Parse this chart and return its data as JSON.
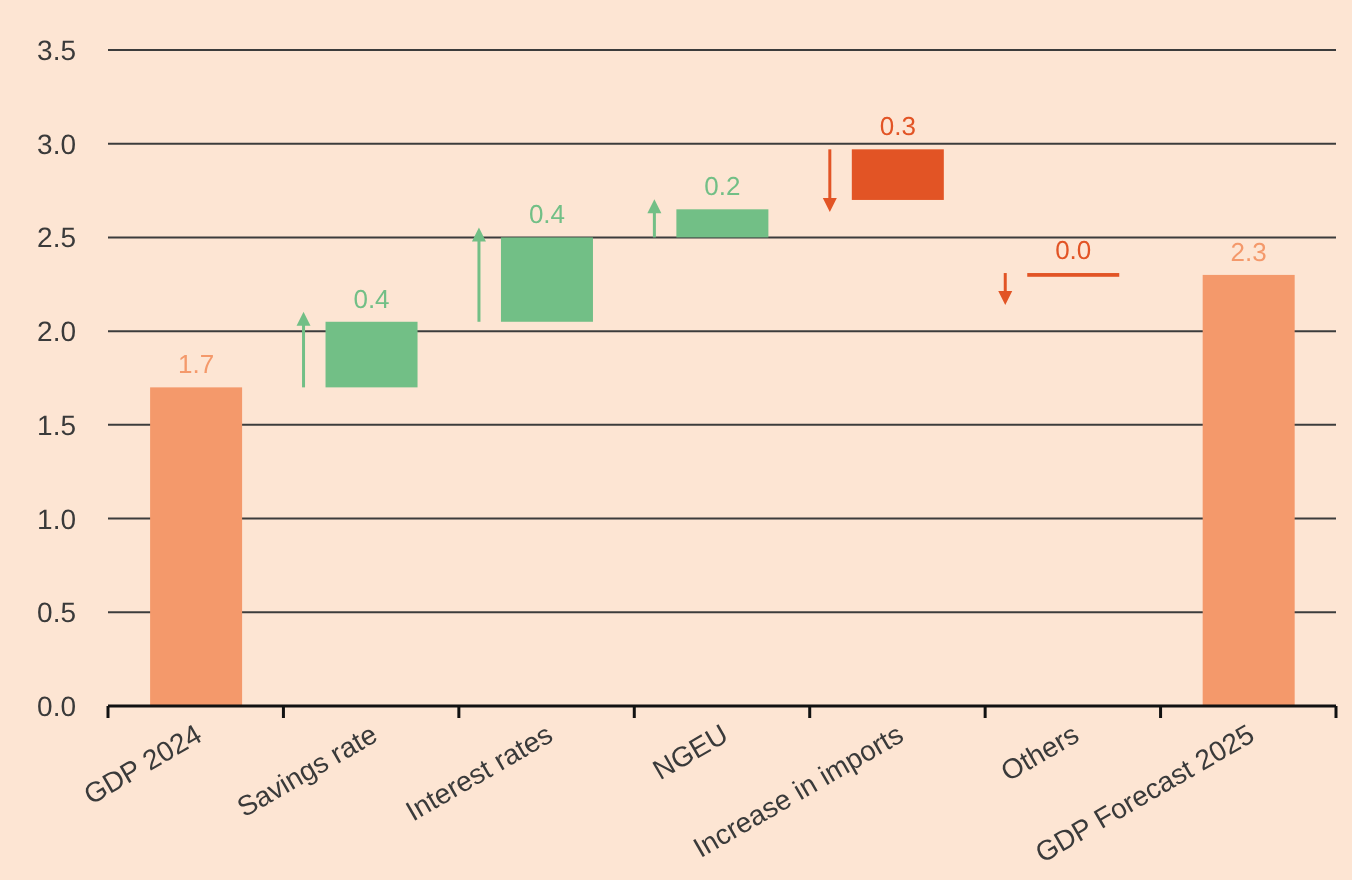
{
  "chart_data": {
    "type": "bar",
    "categories": [
      "GDP 2024",
      "Savings rate",
      "Interest rates",
      "NGEU",
      "Increase in imports",
      "Others",
      "GDP Forecast 2025"
    ],
    "values": [
      1.7,
      0.35,
      0.45,
      0.15,
      -0.27,
      -0.02,
      2.3
    ],
    "base": [
      null,
      1.7,
      2.05,
      2.5,
      2.97,
      2.31,
      null
    ],
    "colors": [
      "#f4996b",
      "#72bf86",
      "#72bf86",
      "#72bf86",
      "#e25425",
      "#e25425",
      "#f4996b"
    ],
    "value_labels": [
      "1.7",
      "0.4",
      "0.4",
      "0.2",
      "0.3",
      "0.0",
      "2.3"
    ],
    "ylim": [
      0,
      3.5
    ],
    "yticks": [
      {
        "value": 0,
        "label": "0.0"
      },
      0.5,
      {
        "value": 1,
        "label": "1.0"
      },
      1.5,
      {
        "value": 2,
        "label": "2.0"
      },
      2.5,
      {
        "value": 3,
        "label": "3.0"
      },
      3.5
    ],
    "grid": "y"
  }
}
